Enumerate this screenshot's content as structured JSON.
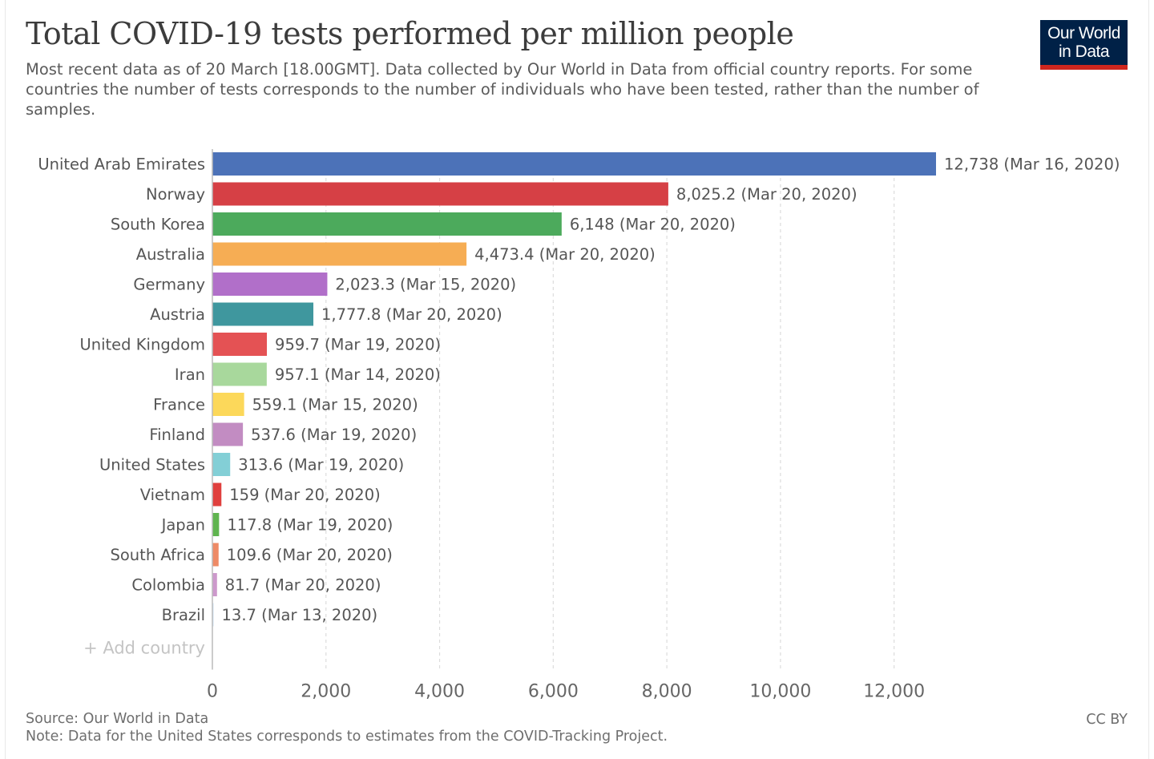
{
  "header": {
    "title": "Total COVID-19 tests performed per million people",
    "subtitle": "Most recent data as of 20 March [18.00GMT]. Data collected by Our World in Data from official country reports. For some countries the number of tests corresponds to the number of individuals who have been tested, rather than the number of samples.",
    "logo_line1": "Our World",
    "logo_line2": "in Data"
  },
  "controls": {
    "add_country_label": "+ Add country"
  },
  "footer": {
    "source": "Source: Our World in Data",
    "note": "Note: Data for the United States corresponds to estimates from the COVID-Tracking Project.",
    "license": "CC BY"
  },
  "chart_data": {
    "type": "bar",
    "orientation": "horizontal",
    "xlim": [
      0,
      12738
    ],
    "x_ticks": [
      0,
      2000,
      4000,
      6000,
      8000,
      10000,
      12000
    ],
    "x_tick_labels": [
      "0",
      "2,000",
      "4,000",
      "6,000",
      "8,000",
      "10,000",
      "12,000"
    ],
    "grid": "vertical dashed",
    "categories": [
      "United Arab Emirates",
      "Norway",
      "South Korea",
      "Australia",
      "Germany",
      "Austria",
      "United Kingdom",
      "Iran",
      "France",
      "Finland",
      "United States",
      "Vietnam",
      "Japan",
      "South Africa",
      "Colombia",
      "Brazil"
    ],
    "values": [
      12738,
      8025.2,
      6148,
      4473.4,
      2023.3,
      1777.8,
      959.7,
      957.1,
      559.1,
      537.6,
      313.6,
      159,
      117.8,
      109.6,
      81.7,
      13.7
    ],
    "data_labels": [
      "12,738 (Mar 16, 2020)",
      "8,025.2 (Mar 20, 2020)",
      "6,148 (Mar 20, 2020)",
      "4,473.4 (Mar 20, 2020)",
      "2,023.3 (Mar 15, 2020)",
      "1,777.8 (Mar 20, 2020)",
      "959.7 (Mar 19, 2020)",
      "957.1 (Mar 14, 2020)",
      "559.1 (Mar 15, 2020)",
      "537.6 (Mar 19, 2020)",
      "313.6 (Mar 19, 2020)",
      "159 (Mar 20, 2020)",
      "117.8 (Mar 19, 2020)",
      "109.6 (Mar 20, 2020)",
      "81.7 (Mar 20, 2020)",
      "13.7 (Mar 13, 2020)"
    ],
    "colors": [
      "#4c72b8",
      "#d64045",
      "#4caa5c",
      "#f6ad54",
      "#b16fc9",
      "#3f979e",
      "#e45254",
      "#a8d89c",
      "#fcd85a",
      "#c28cc2",
      "#83cfd6",
      "#e0403e",
      "#5fb44f",
      "#ee8a66",
      "#cd99cc",
      "#cfe3f5"
    ]
  }
}
